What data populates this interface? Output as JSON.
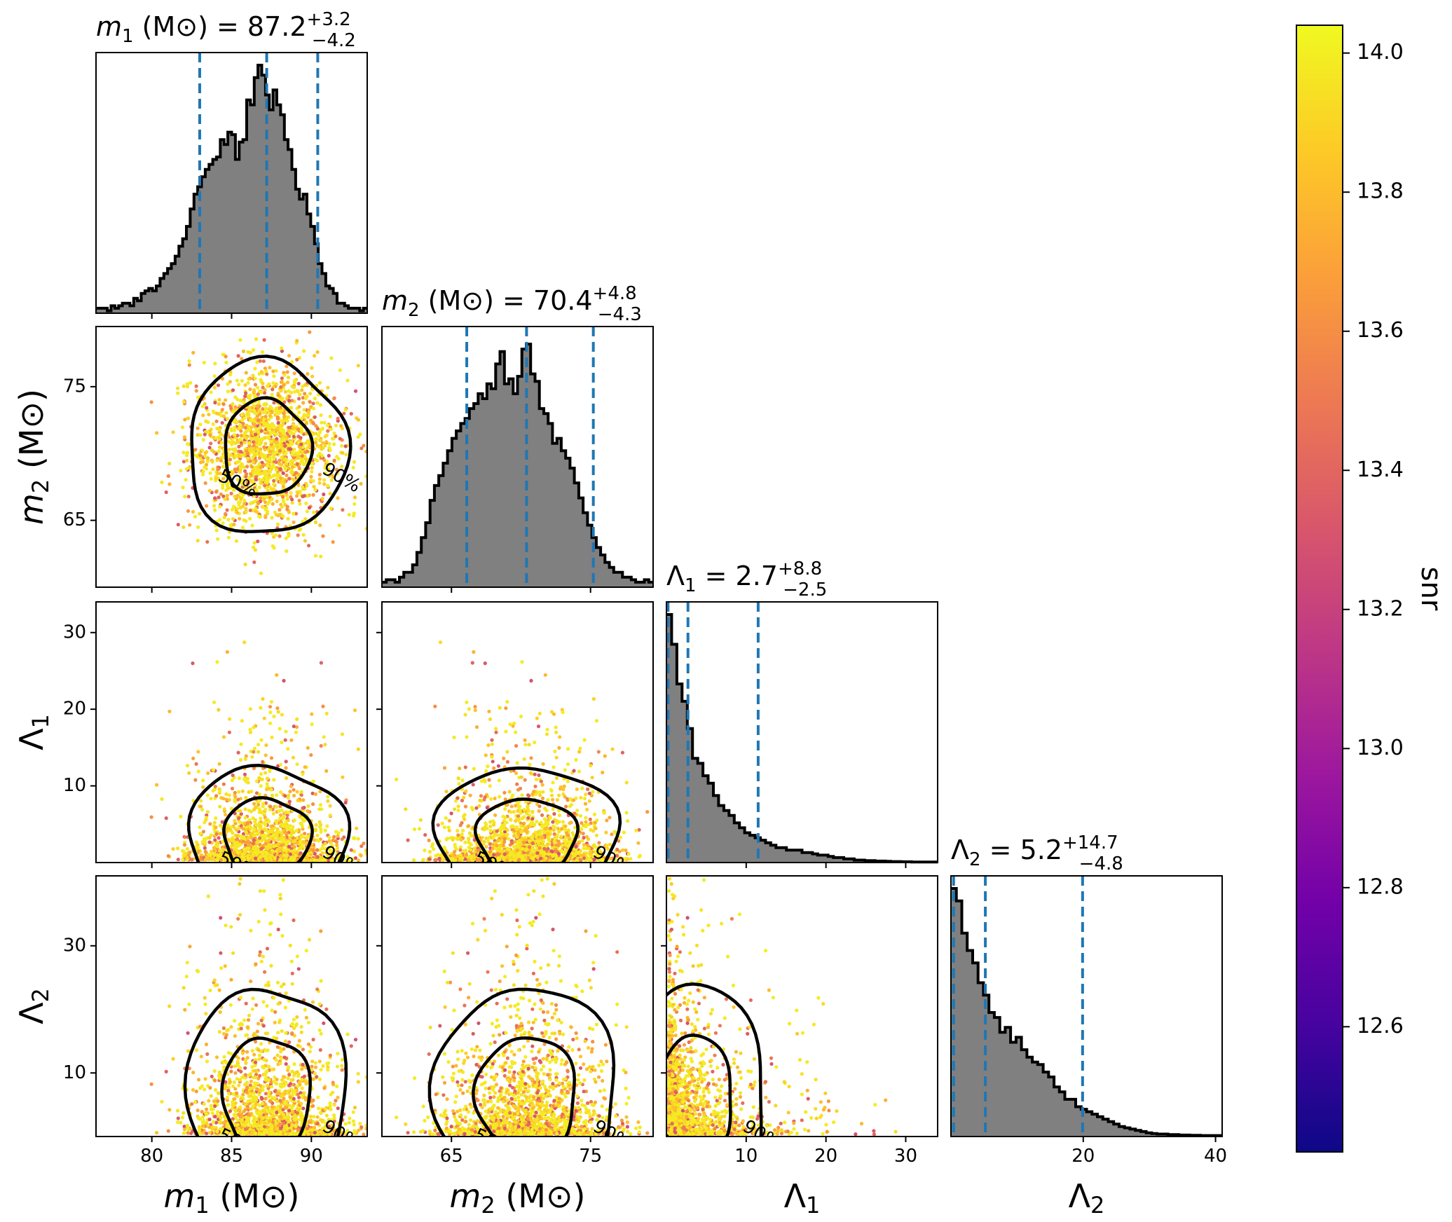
{
  "chart_data": {
    "type": "corner",
    "parameters": [
      {
        "key": "m1",
        "sym": "m",
        "sub": "1",
        "italic": true,
        "unit": "M⊙",
        "median": "87.2",
        "plus": "+3.2",
        "minus": "−4.2",
        "range": [
          76.5,
          93.5
        ],
        "ticks": [
          80,
          85,
          90
        ],
        "quantiles": [
          83.0,
          87.2,
          90.4
        ]
      },
      {
        "key": "m2",
        "sym": "m",
        "sub": "2",
        "italic": true,
        "unit": "M⊙",
        "median": "70.4",
        "plus": "+4.8",
        "minus": "−4.3",
        "range": [
          60.0,
          79.5
        ],
        "ticks": [
          65,
          75
        ],
        "quantiles": [
          66.1,
          70.4,
          75.2
        ]
      },
      {
        "key": "L1",
        "sym": "Λ",
        "sub": "1",
        "italic": false,
        "unit": "",
        "median": "2.7",
        "plus": "+8.8",
        "minus": "−2.5",
        "range": [
          0.0,
          34.0
        ],
        "ticks": [
          10,
          20,
          30
        ],
        "quantiles": [
          0.2,
          2.7,
          11.5
        ]
      },
      {
        "key": "L2",
        "sym": "Λ",
        "sub": "2",
        "italic": false,
        "unit": "",
        "median": "5.2",
        "plus": "+14.7",
        "minus": "−4.8",
        "range": [
          0.0,
          41.0
        ],
        "ticks": [
          20,
          40
        ],
        "quantiles": [
          0.4,
          5.2,
          19.9
        ]
      }
    ],
    "row_ticks": {
      "m2": [
        65,
        75
      ],
      "L1": [
        10,
        20,
        30
      ],
      "L2": [
        10,
        30
      ]
    },
    "histograms": {
      "m1": [
        0.02,
        0.02,
        0.02,
        0.01,
        0.03,
        0.02,
        0.03,
        0.04,
        0.04,
        0.03,
        0.06,
        0.05,
        0.08,
        0.09,
        0.1,
        0.09,
        0.11,
        0.14,
        0.16,
        0.18,
        0.2,
        0.23,
        0.27,
        0.3,
        0.35,
        0.42,
        0.48,
        0.51,
        0.55,
        0.58,
        0.6,
        0.62,
        0.63,
        0.7,
        0.68,
        0.73,
        0.72,
        0.62,
        0.69,
        0.7,
        0.86,
        0.84,
        0.95,
        1.0,
        0.96,
        0.88,
        0.82,
        0.9,
        0.84,
        0.8,
        0.7,
        0.66,
        0.58,
        0.5,
        0.46,
        0.48,
        0.4,
        0.35,
        0.28,
        0.2,
        0.16,
        0.11,
        0.1,
        0.08,
        0.04,
        0.04,
        0.03,
        0.02,
        0.02,
        0.02,
        0.01,
        0.02
      ],
      "m2": [
        0.02,
        0.03,
        0.03,
        0.02,
        0.04,
        0.06,
        0.06,
        0.09,
        0.14,
        0.2,
        0.26,
        0.35,
        0.41,
        0.45,
        0.5,
        0.55,
        0.6,
        0.63,
        0.66,
        0.68,
        0.72,
        0.74,
        0.78,
        0.76,
        0.82,
        0.8,
        0.9,
        0.95,
        0.82,
        0.84,
        0.78,
        0.85,
        0.96,
        0.98,
        0.86,
        0.83,
        0.72,
        0.7,
        0.66,
        0.58,
        0.6,
        0.55,
        0.52,
        0.48,
        0.42,
        0.36,
        0.3,
        0.25,
        0.2,
        0.16,
        0.13,
        0.1,
        0.08,
        0.06,
        0.06,
        0.04,
        0.04,
        0.03,
        0.02,
        0.02,
        0.03,
        0.02
      ],
      "L1": [
        1.0,
        0.88,
        0.72,
        0.65,
        0.54,
        0.42,
        0.4,
        0.35,
        0.32,
        0.27,
        0.23,
        0.21,
        0.19,
        0.16,
        0.14,
        0.12,
        0.11,
        0.1,
        0.09,
        0.08,
        0.07,
        0.06,
        0.06,
        0.05,
        0.05,
        0.05,
        0.04,
        0.04,
        0.035,
        0.03,
        0.03,
        0.025,
        0.02,
        0.02,
        0.015,
        0.015,
        0.01,
        0.01,
        0.008,
        0.008,
        0.006,
        0.006,
        0.005,
        0.004,
        0.004,
        0.003,
        0.003,
        0.002,
        0.002,
        0.002,
        0.002,
        0.002
      ],
      "L2": [
        1.0,
        0.95,
        0.82,
        0.75,
        0.7,
        0.62,
        0.57,
        0.5,
        0.48,
        0.42,
        0.44,
        0.38,
        0.4,
        0.35,
        0.32,
        0.3,
        0.29,
        0.26,
        0.24,
        0.2,
        0.18,
        0.15,
        0.15,
        0.12,
        0.11,
        0.1,
        0.09,
        0.08,
        0.07,
        0.06,
        0.05,
        0.04,
        0.035,
        0.03,
        0.025,
        0.02,
        0.015,
        0.012,
        0.01,
        0.01,
        0.008,
        0.008,
        0.006,
        0.006,
        0.005,
        0.005,
        0.004,
        0.004,
        0.004,
        0.004
      ]
    },
    "contour_levels": [
      "50%",
      "90%"
    ],
    "colorbar": {
      "label": "snr",
      "min": 12.42,
      "max": 14.04,
      "ticks": [
        "12.6",
        "12.8",
        "13.0",
        "13.2",
        "13.4",
        "13.6",
        "13.8",
        "14.0"
      ],
      "colormap": "plasma",
      "stops": [
        "#0d0887",
        "#46039f",
        "#7201a8",
        "#9c179e",
        "#bd3786",
        "#d8576b",
        "#ed7953",
        "#fb9f3a",
        "#fdca26",
        "#f0f921"
      ]
    },
    "quantile_color": "#1f77b4",
    "hist_fill": "#808080"
  }
}
